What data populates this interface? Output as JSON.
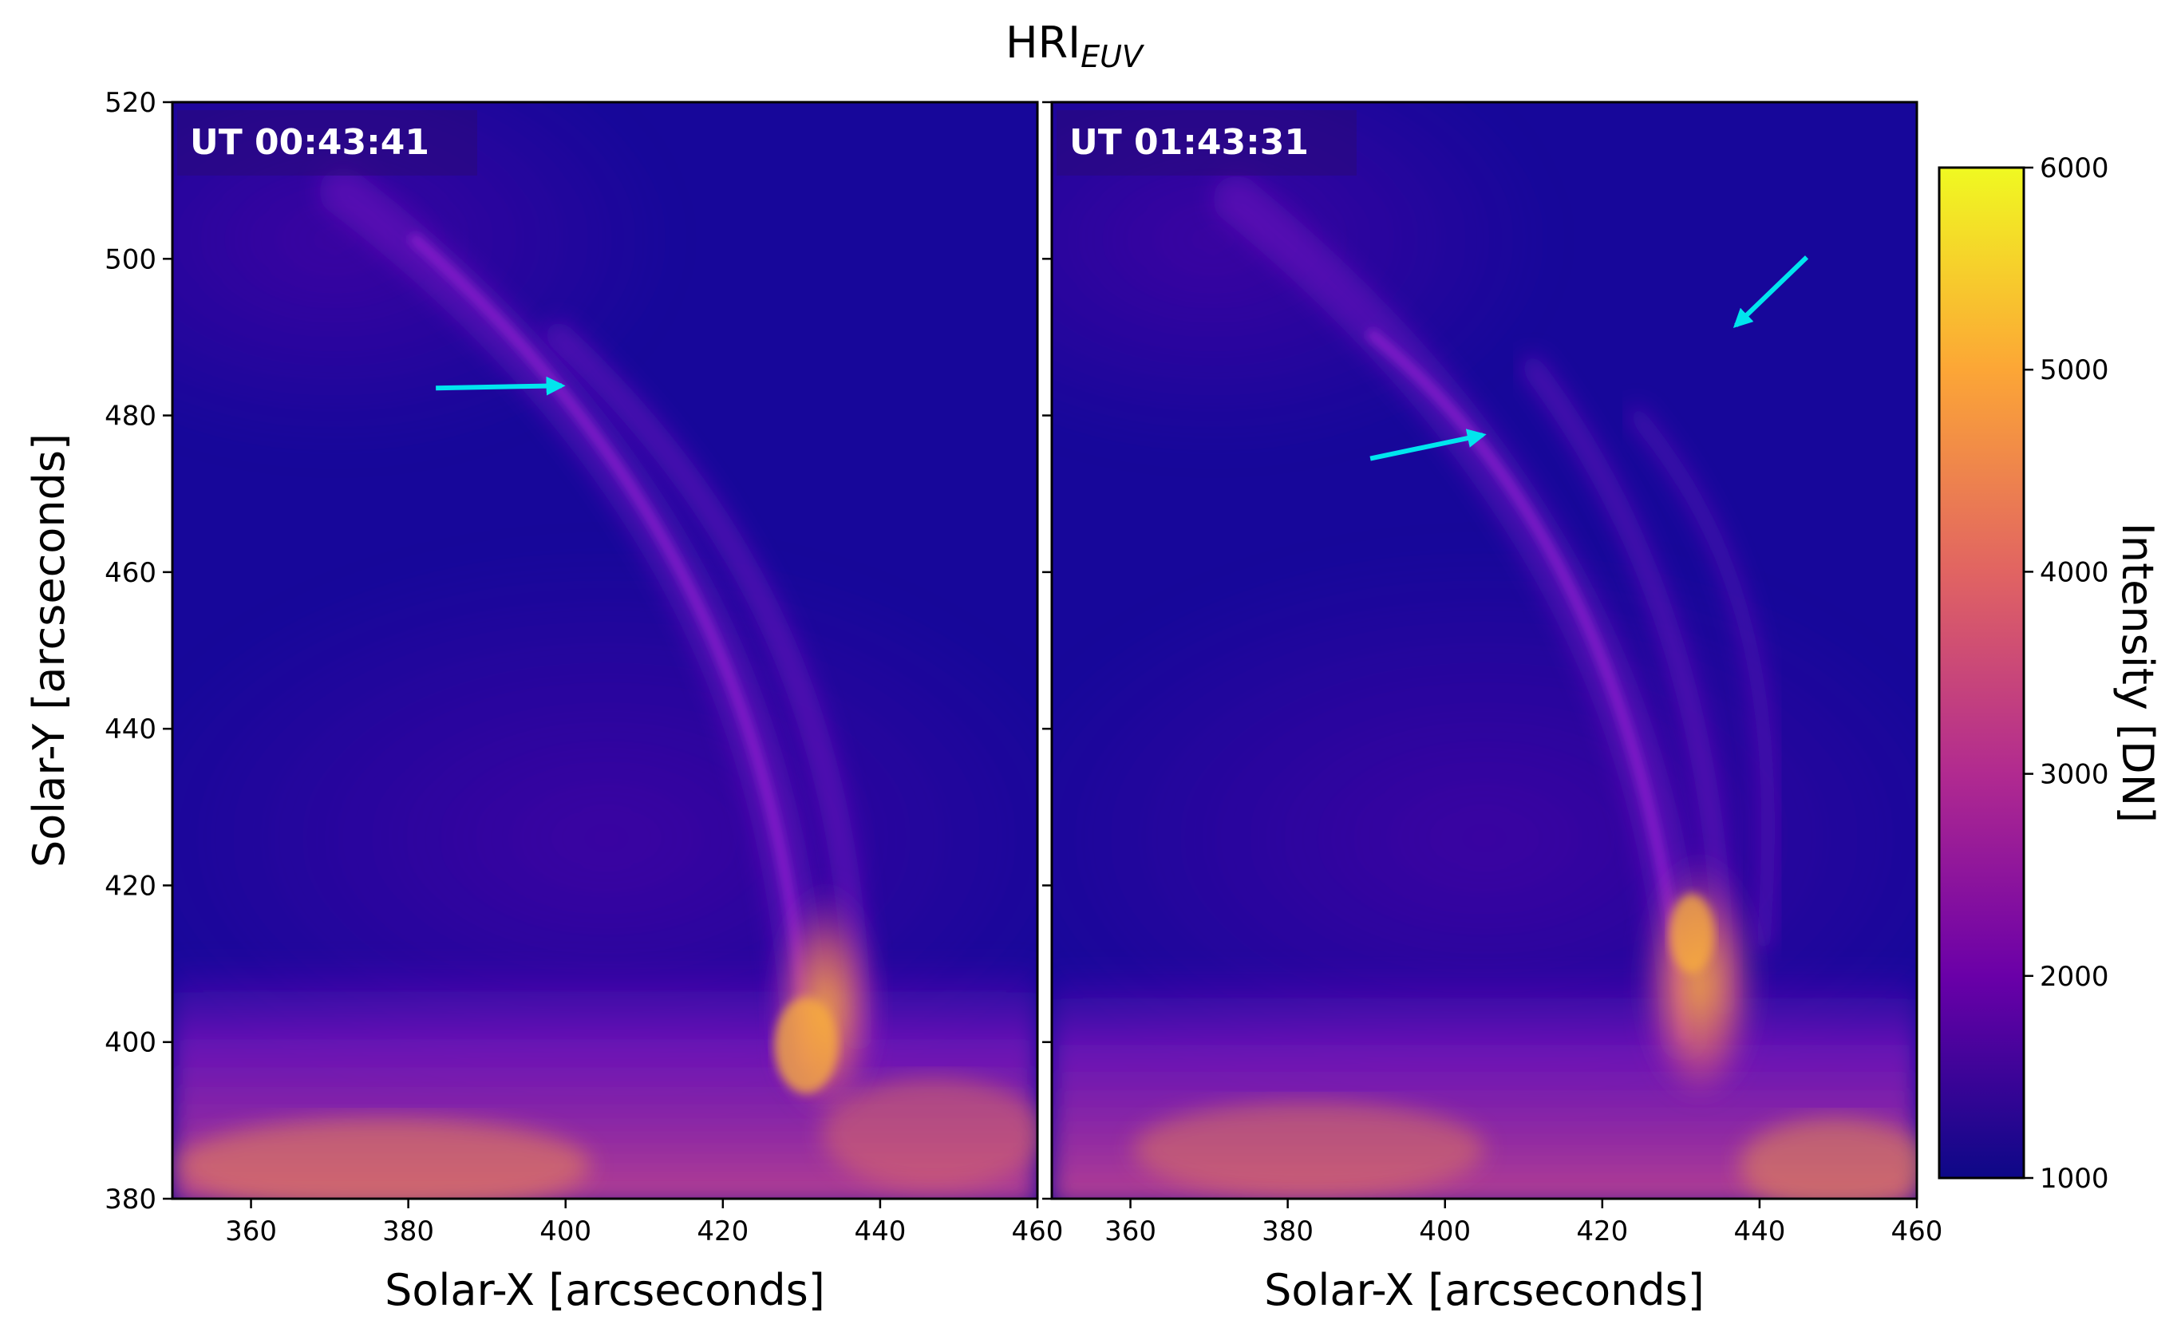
{
  "figure": {
    "title": "HRI",
    "title_subscript": "EUV"
  },
  "chart_data": [
    {
      "type": "heatmap",
      "panel": "left",
      "timestamp": "UT 00:43:41",
      "xlabel": "Solar-X [arcseconds]",
      "ylabel": "Solar-Y [arcseconds]",
      "xlim": [
        350,
        460
      ],
      "ylim": [
        380,
        520
      ],
      "xticks": [
        360,
        380,
        400,
        420,
        440,
        460
      ],
      "yticks": [
        380,
        400,
        420,
        440,
        460,
        480,
        500,
        520
      ],
      "arrows": [
        {
          "from": [
            383.5,
            483.5
          ],
          "to": [
            399.5,
            483.8
          ]
        }
      ]
    },
    {
      "type": "heatmap",
      "panel": "right",
      "timestamp": "UT 01:43:31",
      "xlabel": "Solar-X [arcseconds]",
      "ylabel": "",
      "xlim": [
        350,
        460
      ],
      "ylim": [
        380,
        520
      ],
      "xticks": [
        360,
        380,
        400,
        420,
        440,
        460
      ],
      "yticks": [],
      "arrows": [
        {
          "from": [
            390.5,
            474.5
          ],
          "to": [
            404.8,
            477.5
          ]
        },
        {
          "from": [
            446.0,
            500.2
          ],
          "to": [
            437.0,
            491.5
          ]
        }
      ]
    }
  ],
  "colorbar": {
    "label": "Intensity [DN]",
    "colormap": "plasma",
    "range": [
      1000,
      6000
    ],
    "ticks": [
      1000,
      2000,
      3000,
      4000,
      5000,
      6000
    ],
    "colors": [
      "#0d0887",
      "#6a00a8",
      "#b12a90",
      "#e16462",
      "#fca636",
      "#f0f921"
    ]
  },
  "colors": {
    "arrow": "#00e5ee",
    "background": "#17079a",
    "loop": "#7a12c4",
    "footpoint": "#f7a33a"
  }
}
